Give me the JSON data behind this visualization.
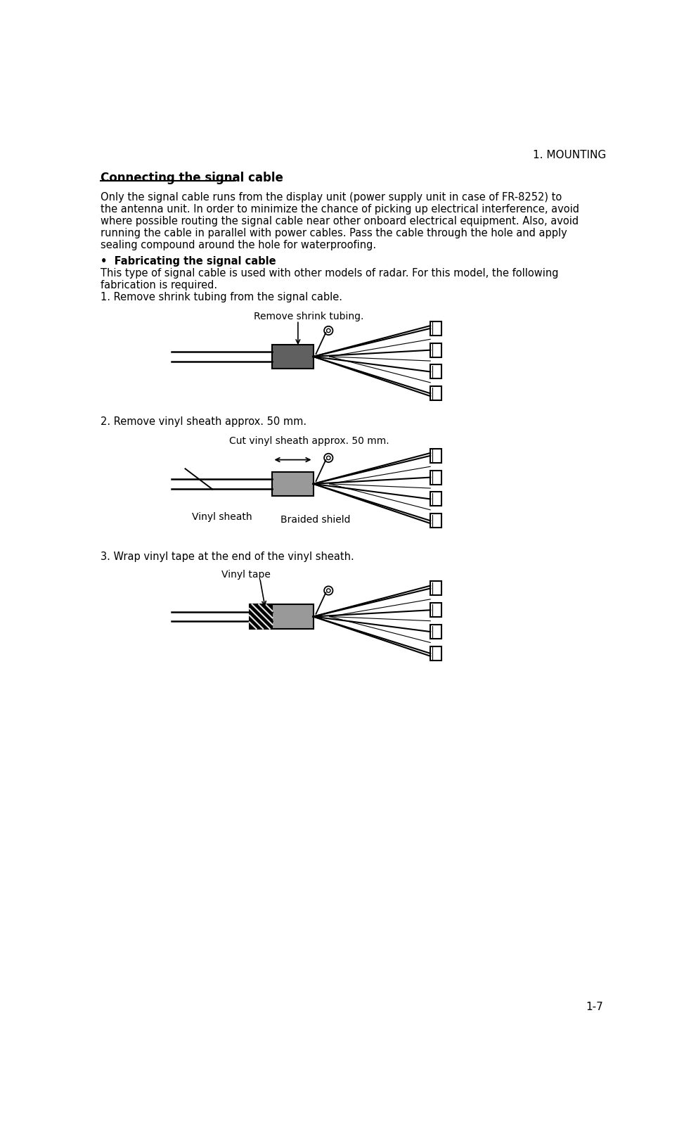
{
  "page_title": "1. MOUNTING",
  "page_number": "1-7",
  "section_title": "Connecting the signal cable",
  "bullet_title": "•  Fabricating the signal cable",
  "para2_line1": "This type of signal cable is used with other models of radar. For this model, the following",
  "para2_line2": "fabrication is required.",
  "step1_text": "1. Remove shrink tubing from the signal cable.",
  "step1_label": "Remove shrink tubing.",
  "step2_text": "2. Remove vinyl sheath approx. 50 mm.",
  "step2_label": "Cut vinyl sheath approx. 50 mm.",
  "step2_label2": "Vinyl sheath",
  "step2_label3": "Braided shield",
  "step3_text": "3. Wrap vinyl tape at the end of the vinyl sheath.",
  "step3_label": "Vinyl tape",
  "bg_color": "#ffffff",
  "text_color": "#000000",
  "dark_gray": "#606060",
  "mid_gray": "#999999",
  "para1_lines": [
    "Only the signal cable runs from the display unit (power supply unit in case of FR-8252) to",
    "the antenna unit. In order to minimize the chance of picking up electrical interference, avoid",
    "where possible routing the signal cable near other onboard electrical equipment. Also, avoid",
    "running the cable in parallel with power cables. Pass the cable through the hole and apply",
    "sealing compound around the hole for waterproofing."
  ]
}
